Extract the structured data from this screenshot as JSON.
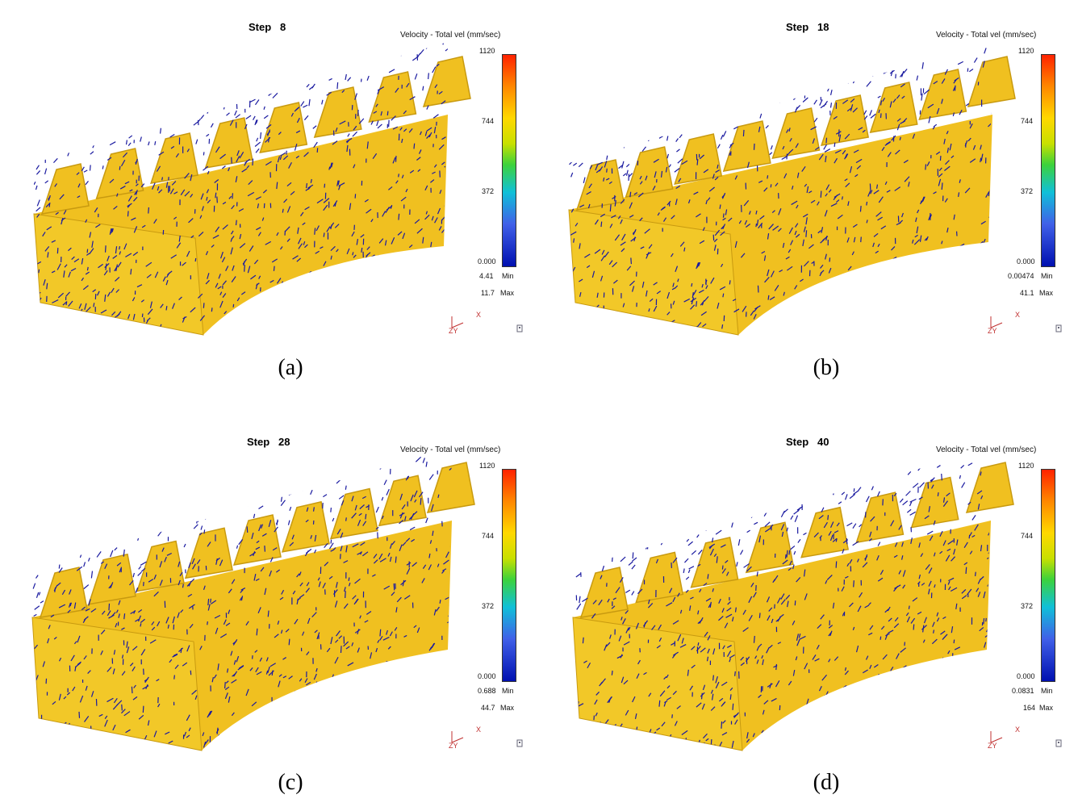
{
  "panels": [
    {
      "id": "a",
      "step_word": "Step",
      "step_num": "8",
      "title": "Velocity - Total vel (mm/sec)",
      "ticks": [
        "1120",
        "744",
        "372",
        "0.000"
      ],
      "min_val": "4.41",
      "min_word": "Min",
      "max_val": "11.7",
      "max_word": "Max",
      "axis_x": "X",
      "axis_zy": "ZY",
      "caption": "(a)"
    },
    {
      "id": "b",
      "step_word": "Step",
      "step_num": "18",
      "title": "Velocity - Total vel (mm/sec)",
      "ticks": [
        "1120",
        "744",
        "372",
        "0.000"
      ],
      "min_val": "0.00474",
      "min_word": "Min",
      "max_val": "41.1",
      "max_word": "Max",
      "axis_x": "X",
      "axis_zy": "ZY",
      "caption": "(b)"
    },
    {
      "id": "c",
      "step_word": "Step",
      "step_num": "28",
      "title": "Velocity - Total vel (mm/sec)",
      "ticks": [
        "1120",
        "744",
        "372",
        "0.000"
      ],
      "min_val": "0.688",
      "min_word": "Min",
      "max_val": "44.7",
      "max_word": "Max",
      "axis_x": "X",
      "axis_zy": "ZY",
      "caption": "(c)"
    },
    {
      "id": "d",
      "step_word": "Step",
      "step_num": "40",
      "title": "Velocity - Total vel (mm/sec)",
      "ticks": [
        "1120",
        "744",
        "372",
        "0.000"
      ],
      "min_val": "0.0831",
      "min_word": "Min",
      "max_val": "164",
      "max_word": "Max",
      "axis_x": "X",
      "axis_zy": "ZY",
      "caption": "(d)"
    }
  ],
  "colors": {
    "gear": "#f0c020",
    "gear_shadow": "#c89a10",
    "arrow": "#1a1aa0"
  }
}
